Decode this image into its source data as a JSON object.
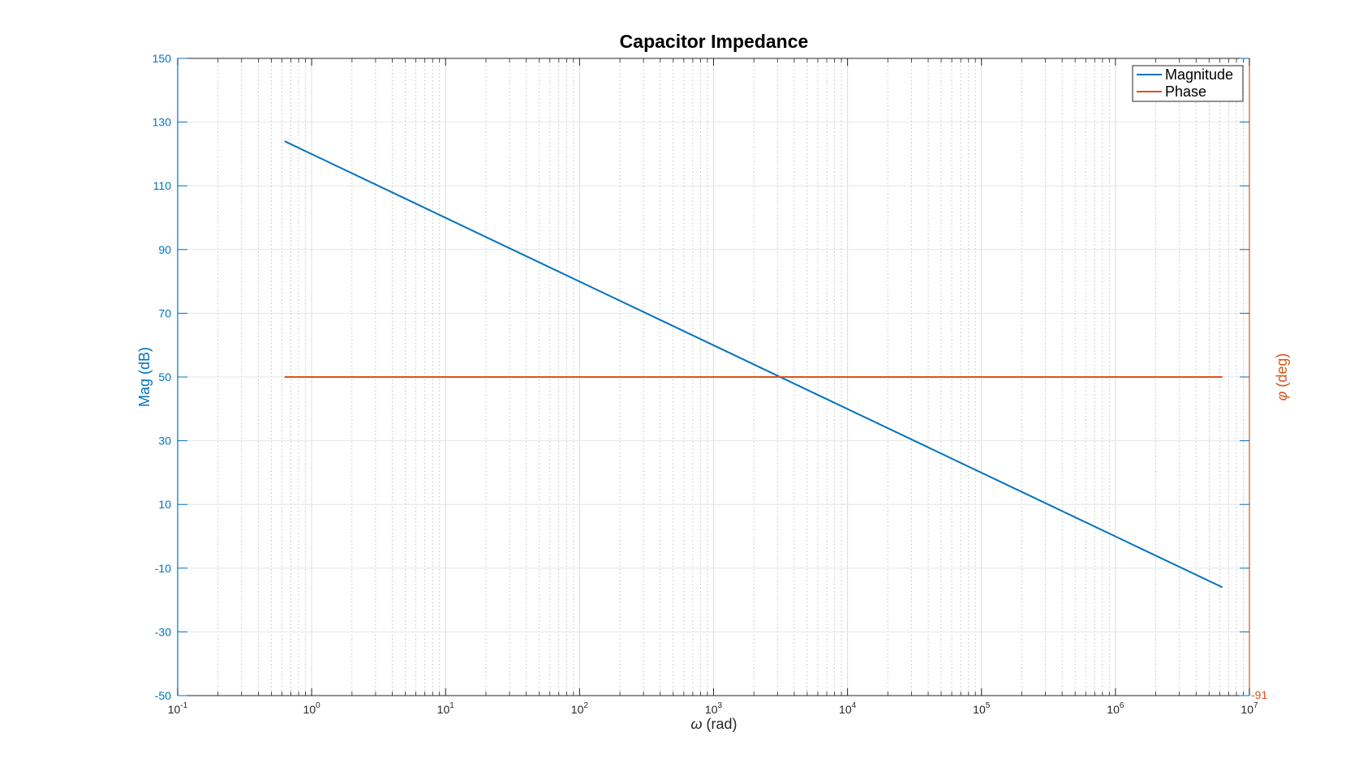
{
  "chart_data": {
    "type": "line",
    "title": "Capacitor Impedance",
    "xlabel_symbol": "ω",
    "xlabel_unit": " (rad)",
    "ylabel_left": "Mag (dB)",
    "ylabel_right_symbol": "φ",
    "ylabel_right_unit": " (deg)",
    "x_scale": "log",
    "xlim": [
      0.1,
      10000000
    ],
    "x_ticks": [
      {
        "base": "10",
        "exp": "-1"
      },
      {
        "base": "10",
        "exp": "0"
      },
      {
        "base": "10",
        "exp": "1"
      },
      {
        "base": "10",
        "exp": "2"
      },
      {
        "base": "10",
        "exp": "3"
      },
      {
        "base": "10",
        "exp": "4"
      },
      {
        "base": "10",
        "exp": "5"
      },
      {
        "base": "10",
        "exp": "6"
      },
      {
        "base": "10",
        "exp": "7"
      }
    ],
    "ylim_left": [
      -50,
      150
    ],
    "y_ticks_left": [
      "150",
      "130",
      "110",
      "90",
      "70",
      "50",
      "30",
      "10",
      "-10",
      "-30",
      "-50"
    ],
    "y_ticks_right": [
      "-91"
    ],
    "grid": true,
    "minor_grid": true,
    "legend_position": "top-right",
    "series": [
      {
        "name": "Magnitude",
        "color": "#0072bd",
        "axis": "left",
        "x": [
          0.628,
          6280000
        ],
        "y": [
          124,
          -16
        ]
      },
      {
        "name": "Phase",
        "color": "#d95319",
        "axis": "left",
        "x": [
          0.628,
          6280000
        ],
        "y": [
          50,
          50
        ]
      }
    ]
  }
}
